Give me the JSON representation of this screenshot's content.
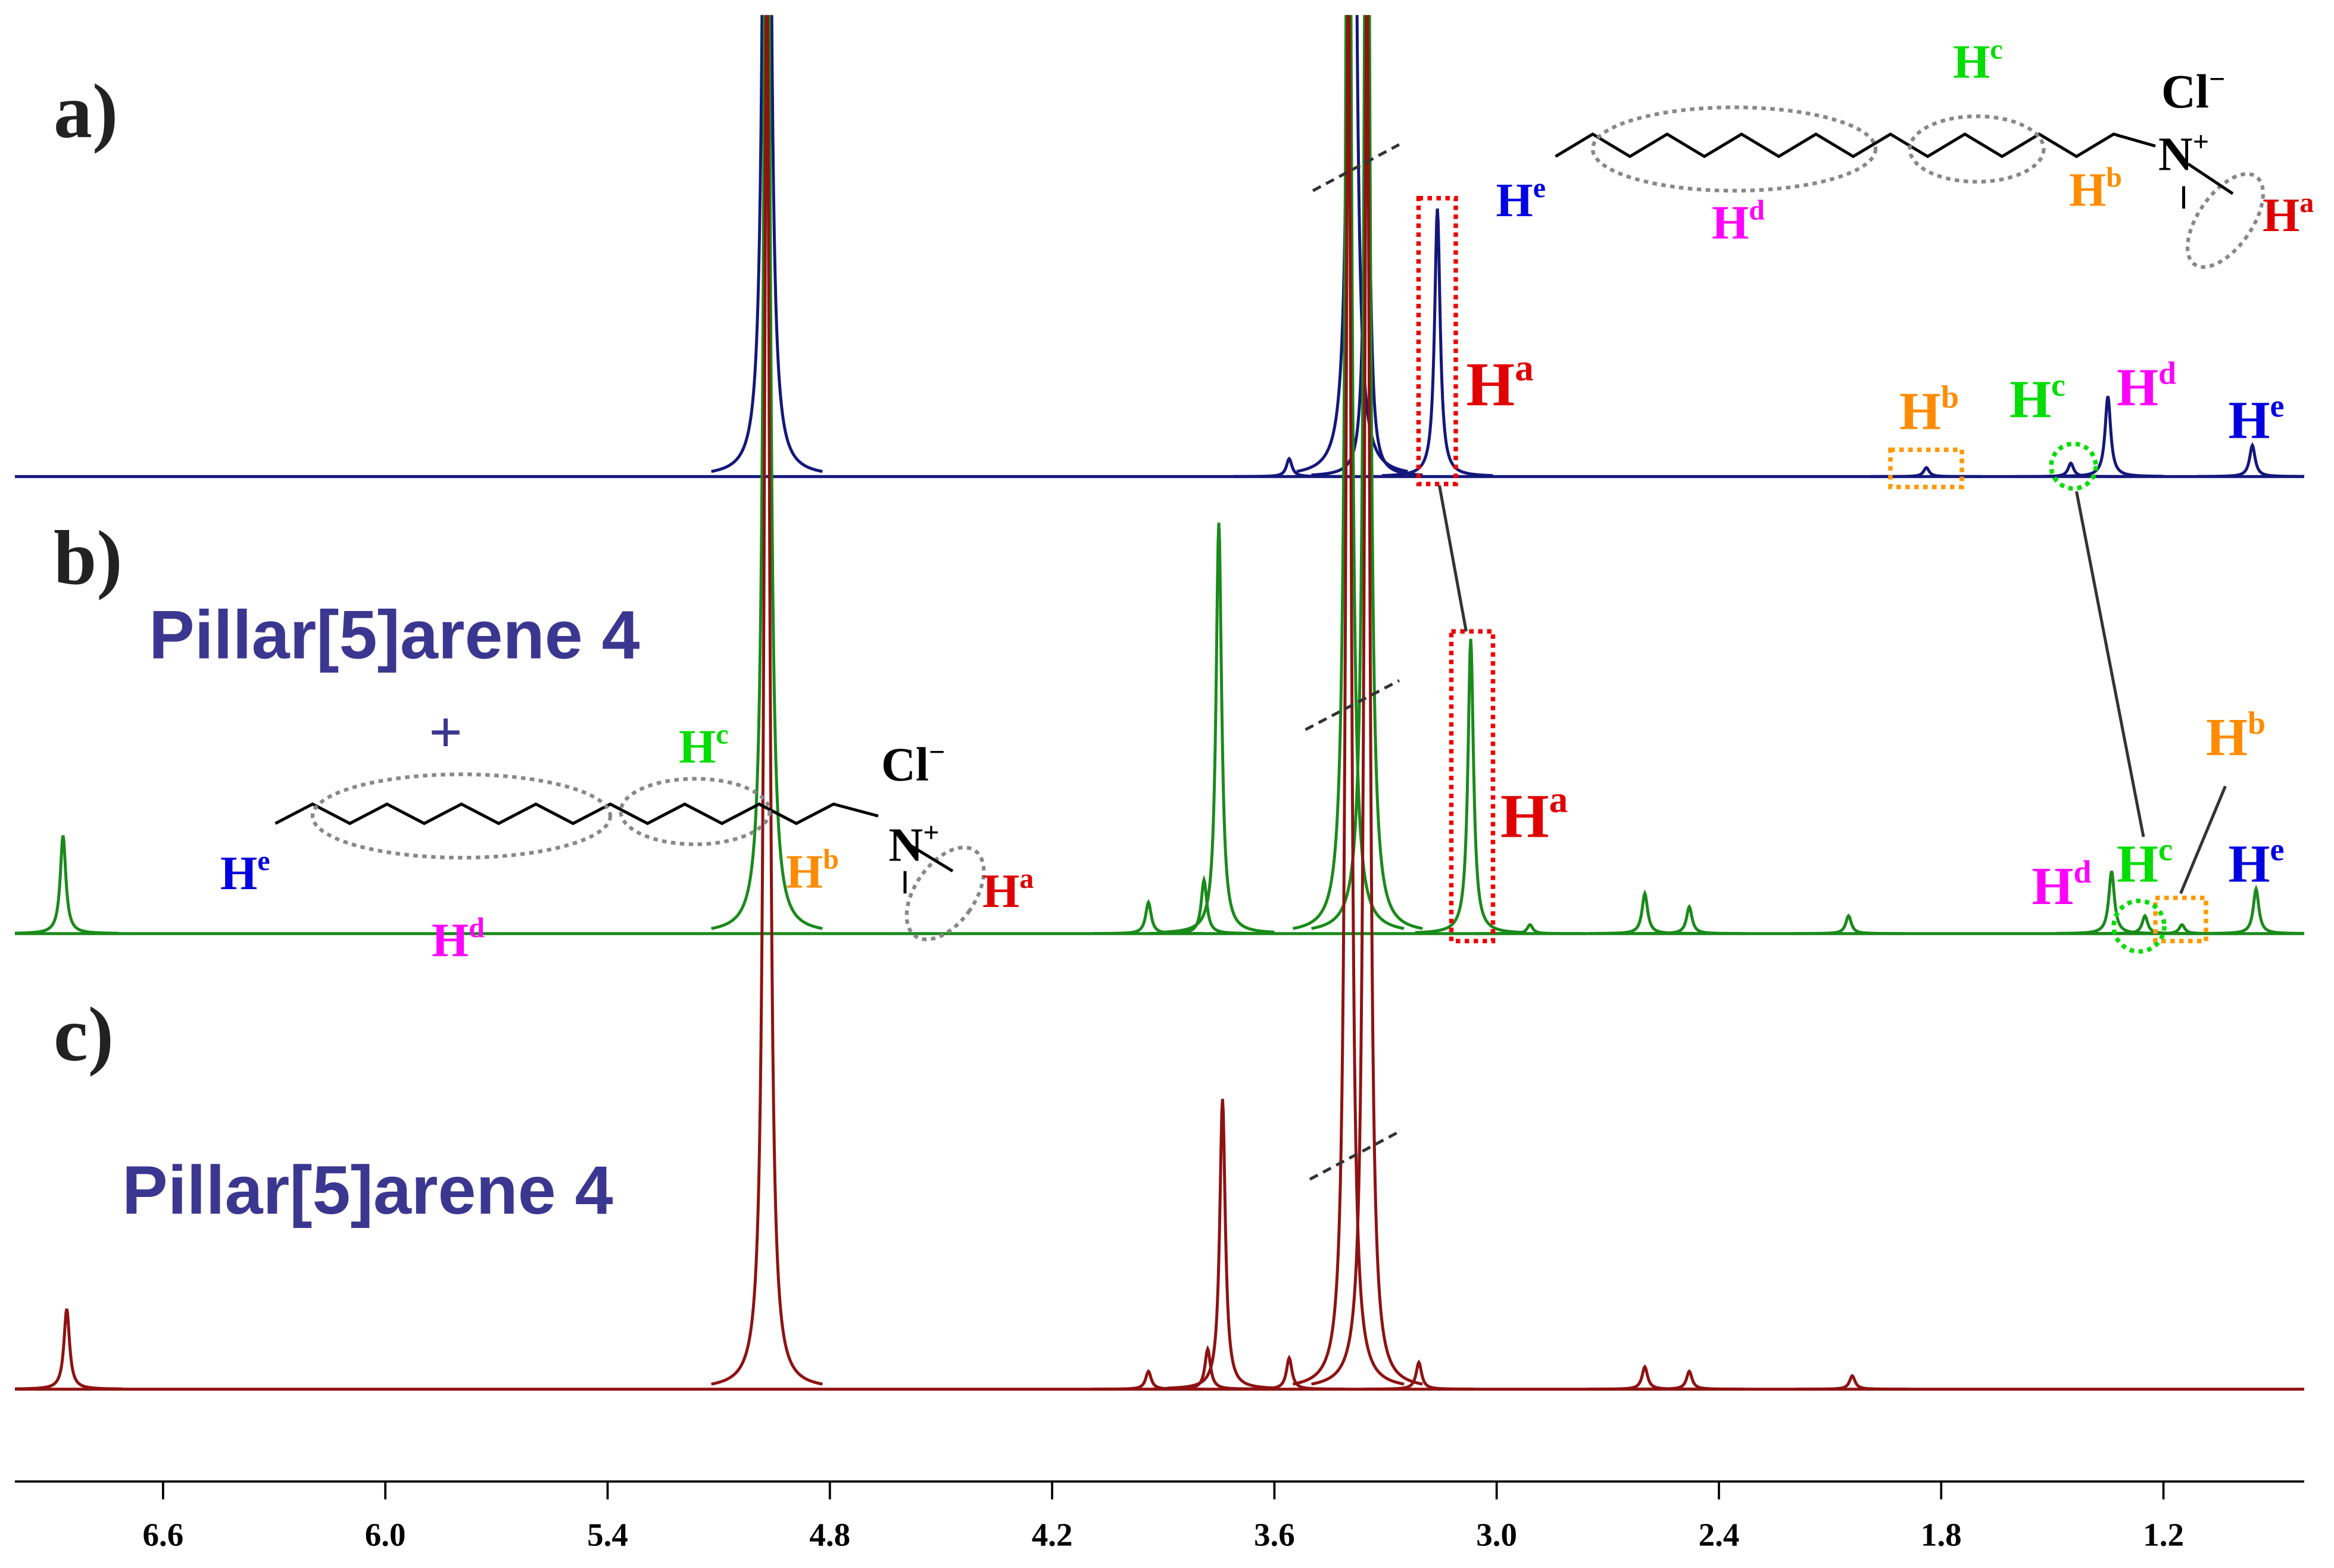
{
  "chart_data": {
    "type": "line",
    "xlim": [
      7.0,
      0.82
    ],
    "xticks": [
      6.6,
      {
        "value": 6,
        "label": "6.0"
      },
      5.4,
      4.8,
      4.2,
      3.6,
      {
        "value": 3,
        "label": "3.0"
      },
      2.4,
      1.8,
      1.2
    ],
    "series": [
      {
        "name": "a)",
        "color": "#14177a",
        "x": [
          4.97,
          3.39,
          3.35,
          3.16,
          3.56,
          1.84,
          1.45,
          1.35,
          0.96
        ],
        "values": [
          320,
          320,
          98,
          60,
          4,
          2,
          3,
          18,
          7
        ]
      },
      {
        "name": "b)",
        "color": "#1a8a1a",
        "x": [
          6.87,
          4.97,
          3.94,
          3.79,
          3.75,
          3.4,
          3.35,
          3.07,
          2.91,
          2.6,
          2.48,
          2.05,
          1.34,
          1.25,
          1.15,
          0.95
        ],
        "values": [
          22,
          320,
          7,
          12,
          92,
          320,
          320,
          66,
          2,
          9,
          6,
          4,
          14,
          4,
          2,
          10
        ]
      },
      {
        "name": "c)",
        "color": "#8e1212",
        "x": [
          6.86,
          4.97,
          3.94,
          3.78,
          3.74,
          3.56,
          3.4,
          3.35,
          3.21,
          2.6,
          2.48,
          2.04
        ],
        "values": [
          18,
          320,
          4,
          9,
          65,
          7,
          320,
          320,
          6,
          5,
          4,
          3
        ]
      }
    ],
    "annotations": [
      {
        "text": "Pillar[5]arene 4"
      },
      {
        "text": "Pillar[5]arene 4"
      },
      {
        "text": "+"
      },
      {
        "text": "H",
        "sup": "e"
      },
      {
        "text": "H",
        "sup": "d"
      },
      {
        "text": "H",
        "sup": "c"
      },
      {
        "text": "H",
        "sup": "b"
      },
      {
        "text": "H",
        "sup": "a"
      },
      {
        "text": "Cl",
        "sup": "−"
      },
      {
        "text": "N",
        "sup": "+"
      },
      {
        "text": "H",
        "sup": "a"
      },
      {
        "text": "H",
        "sup": "b"
      },
      {
        "text": "H",
        "sup": "c"
      },
      {
        "text": "H",
        "sup": "d"
      },
      {
        "text": "H",
        "sup": "e"
      },
      {
        "text": "H",
        "sup": "e"
      },
      {
        "text": "H",
        "sup": "d"
      },
      {
        "text": "H",
        "sup": "c"
      },
      {
        "text": "H",
        "sup": "b"
      },
      {
        "text": "H",
        "sup": "a"
      },
      {
        "text": "Cl",
        "sup": "−"
      },
      {
        "text": "N",
        "sup": "+"
      },
      {
        "text": "H",
        "sup": "a"
      },
      {
        "text": "H",
        "sup": "b"
      },
      {
        "text": "H",
        "sup": "e"
      },
      {
        "text": "H",
        "sup": "d"
      },
      {
        "text": "H",
        "sup": "c"
      }
    ]
  }
}
